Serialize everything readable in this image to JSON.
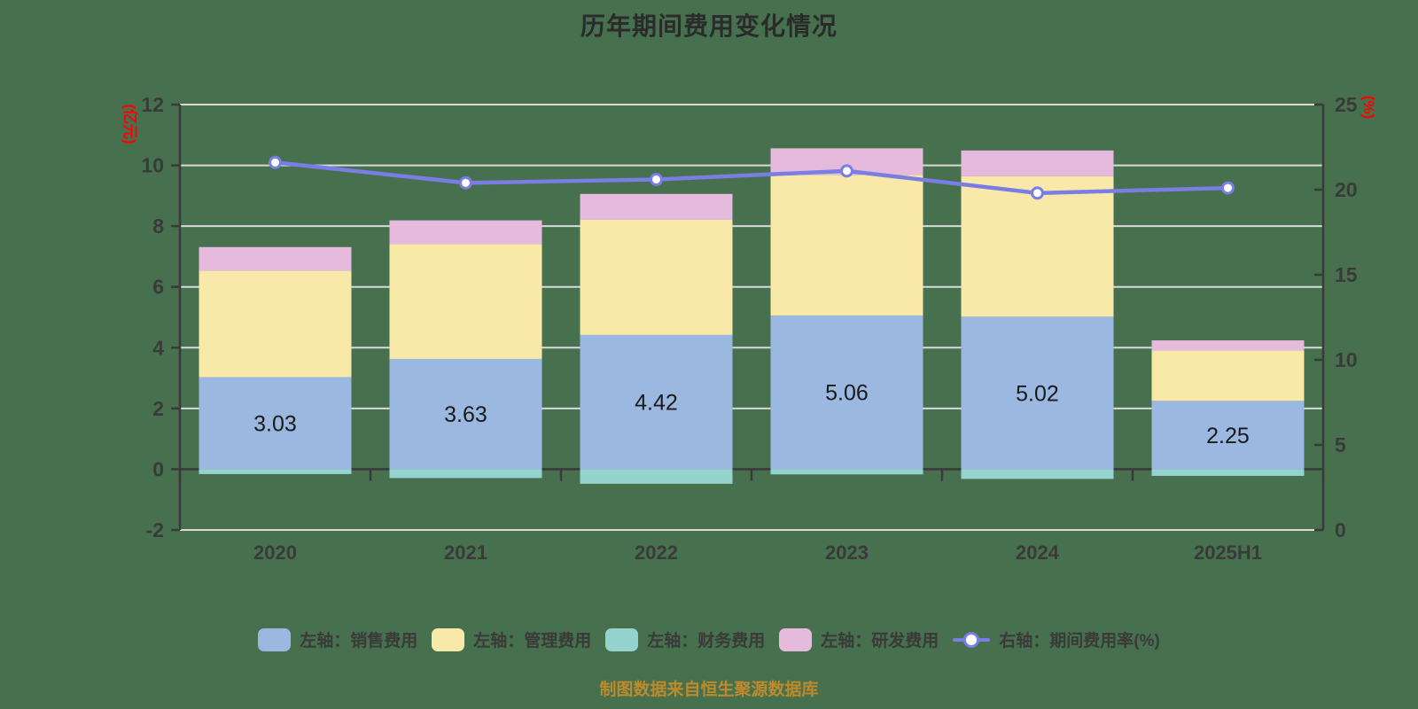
{
  "title": "历年期间费用变化情况",
  "source_note": "制图数据来自恒生聚源数据库",
  "colors": {
    "background": "#47704E",
    "sales": "#9BB8E1",
    "management": "#F8E9A9",
    "financial": "#95D3CF",
    "rnd": "#E5BADC",
    "line": "#7A7DE4",
    "axis": "#3A3A3A",
    "grid": "#DADADA",
    "axis_name": "#FF0000",
    "title_color": "#2B2B2B",
    "note_color": "#BE8A2B",
    "bar_label": "#1A1A1A"
  },
  "chart_data": {
    "type": "bar",
    "subtype": "stacked-bars-with-right-axis-line",
    "title": "历年期间费用变化情况",
    "categories": [
      "2020",
      "2021",
      "2022",
      "2023",
      "2024",
      "2025H1"
    ],
    "series": [
      {
        "name": "左轴：销售费用",
        "type": "bar",
        "axis": "left",
        "color_key": "sales",
        "values": [
          3.03,
          3.63,
          4.42,
          5.06,
          5.02,
          2.25
        ],
        "data_labels": [
          "3.03",
          "3.63",
          "4.42",
          "5.06",
          "5.02",
          "2.25"
        ]
      },
      {
        "name": "左轴：管理费用",
        "type": "bar",
        "axis": "left",
        "color_key": "management",
        "values": [
          3.5,
          3.78,
          3.79,
          4.63,
          4.62,
          1.66
        ]
      },
      {
        "name": "左轴：财务费用",
        "type": "bar",
        "axis": "left",
        "color_key": "financial",
        "values": [
          -0.16,
          -0.29,
          -0.48,
          -0.17,
          -0.32,
          -0.22
        ]
      },
      {
        "name": "左轴：研发费用",
        "type": "bar",
        "axis": "left",
        "color_key": "rnd",
        "values": [
          0.78,
          0.78,
          0.85,
          0.87,
          0.85,
          0.33
        ]
      },
      {
        "name": "右轴：期间费用率(%)",
        "type": "line",
        "axis": "right",
        "color_key": "line",
        "values": [
          21.6,
          20.4,
          20.6,
          21.1,
          19.8,
          20.1
        ]
      }
    ],
    "left_axis": {
      "name": "(亿元)",
      "min": -2,
      "max": 12,
      "ticks": [
        12,
        10,
        8,
        6,
        4,
        2,
        0,
        -2
      ]
    },
    "right_axis": {
      "name": "(%)",
      "min": 0,
      "max": 25,
      "ticks": [
        25,
        20,
        15,
        10,
        5,
        0
      ]
    },
    "grid": true,
    "legend_position": "bottom"
  },
  "legend": {
    "items": [
      {
        "label": "左轴：销售费用",
        "color_key": "sales",
        "marker": "rect"
      },
      {
        "label": "左轴：管理费用",
        "color_key": "management",
        "marker": "rect"
      },
      {
        "label": "左轴：财务费用",
        "color_key": "financial",
        "marker": "rect"
      },
      {
        "label": "左轴：研发费用",
        "color_key": "rnd",
        "marker": "rect"
      },
      {
        "label": "右轴：期间费用率(%)",
        "color_key": "line",
        "marker": "line-circle"
      }
    ]
  }
}
